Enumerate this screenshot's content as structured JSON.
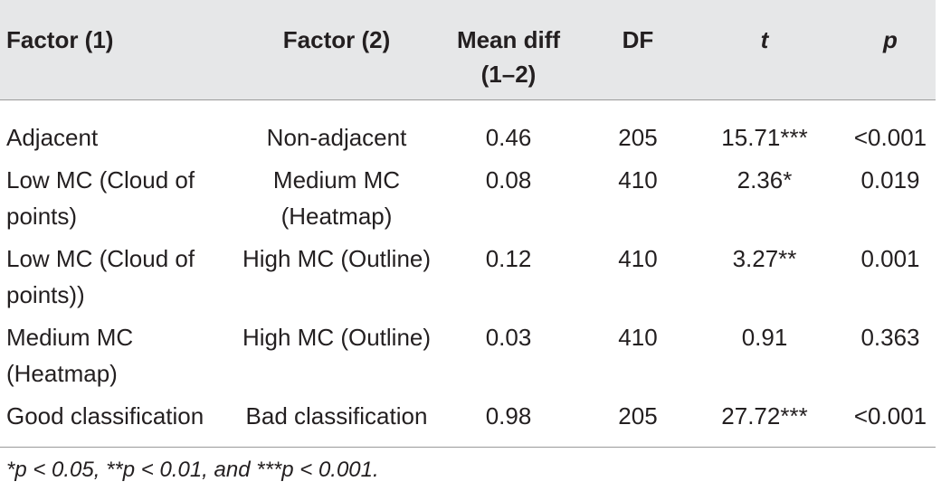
{
  "table": {
    "headers": {
      "factor1": "Factor (1)",
      "factor2": "Factor (2)",
      "mean_diff_line1": "Mean diff",
      "mean_diff_line2": "(1–2)",
      "df": "DF",
      "t": "t",
      "p": "p"
    },
    "rows": [
      {
        "factor1_line1": "Adjacent",
        "factor1_line2": "",
        "factor2_line1": "Non-adjacent",
        "factor2_line2": "",
        "mean_diff": "0.46",
        "df": "205",
        "t": "15.71***",
        "p": "<0.001"
      },
      {
        "factor1_line1": "Low MC (Cloud of",
        "factor1_line2": "points)",
        "factor2_line1": "Medium MC",
        "factor2_line2": "(Heatmap)",
        "mean_diff": "0.08",
        "df": "410",
        "t": "2.36*",
        "p": "0.019"
      },
      {
        "factor1_line1": "Low MC (Cloud of",
        "factor1_line2": "points))",
        "factor2_line1": "High MC (Outline)",
        "factor2_line2": "",
        "mean_diff": "0.12",
        "df": "410",
        "t": "3.27**",
        "p": "0.001"
      },
      {
        "factor1_line1": "Medium MC",
        "factor1_line2": "(Heatmap)",
        "factor2_line1": "High MC (Outline)",
        "factor2_line2": "",
        "mean_diff": "0.03",
        "df": "410",
        "t": "0.91",
        "p": "0.363"
      },
      {
        "factor1_line1": "Good classification",
        "factor1_line2": "",
        "factor2_line1": "Bad classification",
        "factor2_line2": "",
        "mean_diff": "0.98",
        "df": "205",
        "t": "27.72***",
        "p": "<0.001"
      }
    ],
    "footnote": "*p < 0.05, **p < 0.01, and ***p < 0.001."
  }
}
